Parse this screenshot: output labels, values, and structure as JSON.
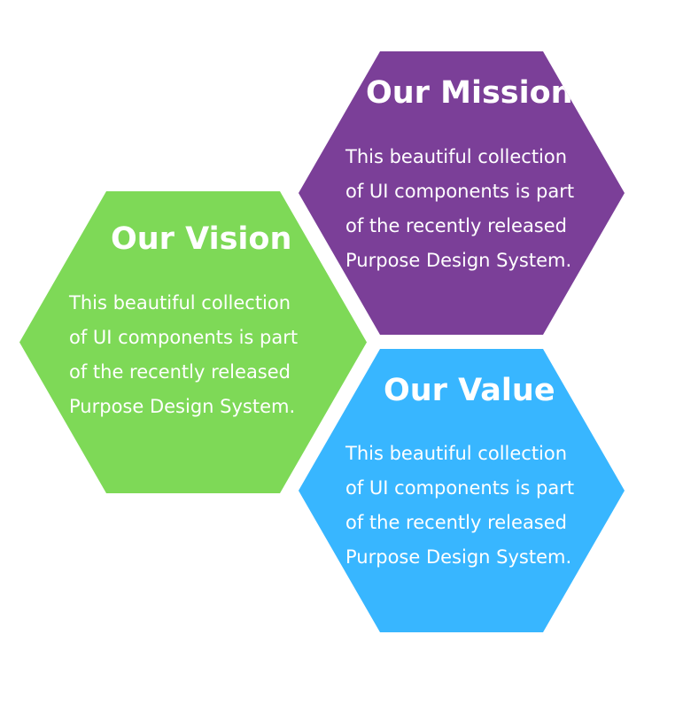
{
  "colors": {
    "mission": "#7b3f98",
    "vision": "#7ed957",
    "value": "#38b6ff"
  },
  "hexagons": [
    {
      "id": "mission",
      "title": "Our Mission",
      "lines": [
        "This beautiful collection",
        "of UI components is part",
        "of the recently released",
        "Purpose Design System."
      ]
    },
    {
      "id": "vision",
      "title": "Our Vision",
      "lines": [
        "This beautiful collection",
        "of UI components is part",
        "of the recently released",
        "Purpose Design System."
      ]
    },
    {
      "id": "value",
      "title": "Our Value",
      "lines": [
        "This beautiful collection",
        "of UI components is part",
        "of the recently released",
        "Purpose Design System."
      ]
    }
  ]
}
